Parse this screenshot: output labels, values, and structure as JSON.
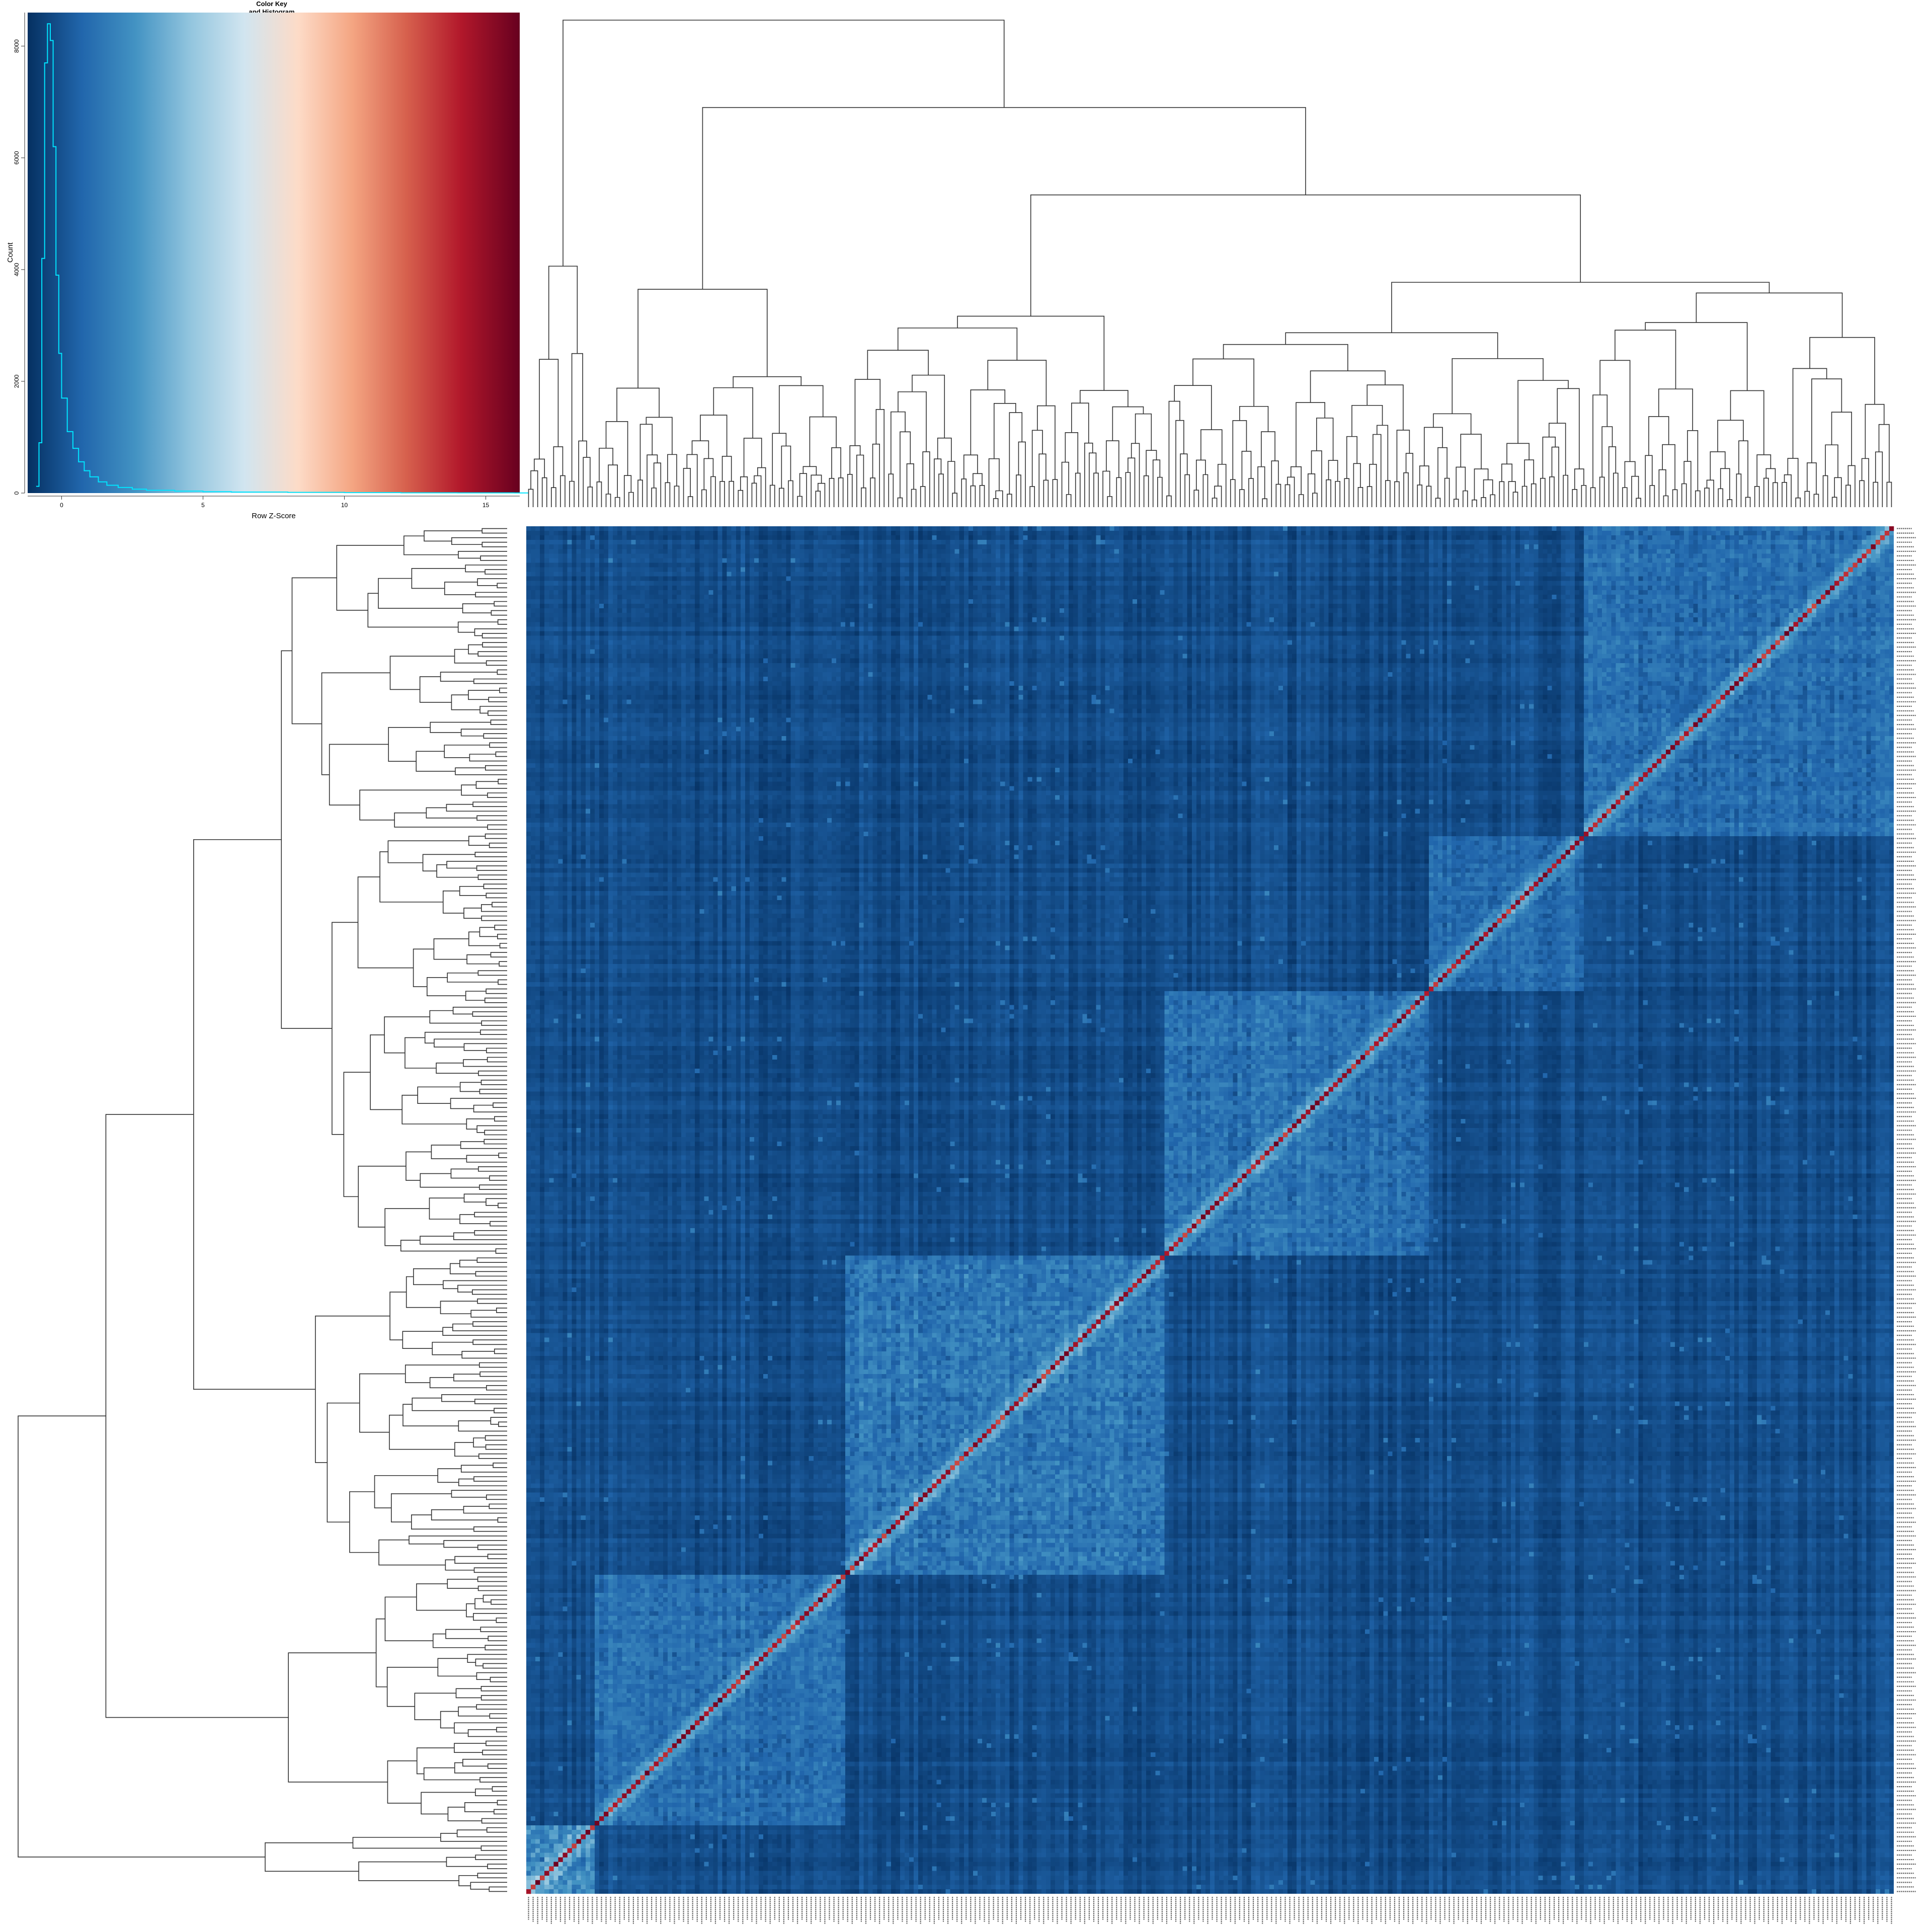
{
  "colors": {
    "palette": [
      "#053061",
      "#2166ac",
      "#4393c3",
      "#92c5de",
      "#d1e5f0",
      "#fddbc7",
      "#f4a582",
      "#d6604d",
      "#b2182b",
      "#67001f"
    ],
    "histogram_line": "#00e5ff",
    "dendrogram_line": "#333333"
  },
  "chart_data": [
    {
      "type": "histogram",
      "title": "Color Key\nand Histogram",
      "xlabel": "Row Z-Score",
      "ylabel": "Count",
      "xlim": [
        -1.2,
        16.2
      ],
      "ylim": [
        0,
        8600
      ],
      "x_ticks": [
        0,
        5,
        10,
        15
      ],
      "y_ticks": [
        0,
        2000,
        4000,
        6000,
        8000
      ],
      "bins": {
        "x": [
          -0.9,
          -0.8,
          -0.7,
          -0.6,
          -0.5,
          -0.4,
          -0.3,
          -0.2,
          -0.1,
          0.0,
          0.2,
          0.4,
          0.6,
          0.8,
          1.0,
          1.3,
          1.6,
          2.0,
          2.5,
          3.0,
          4.0,
          5.0,
          6.0,
          8.0,
          10.0,
          12.0,
          14.0,
          16.0
        ],
        "counts": [
          120,
          900,
          4200,
          7700,
          8400,
          8100,
          6200,
          3900,
          2500,
          1700,
          1100,
          800,
          560,
          400,
          290,
          200,
          140,
          100,
          70,
          50,
          35,
          25,
          18,
          12,
          8,
          5,
          3,
          2
        ]
      }
    },
    {
      "type": "heatmap",
      "title": "",
      "xlabel": "",
      "ylabel": "",
      "n_rows": 300,
      "n_cols": 300,
      "value_range": [
        -1,
        16
      ],
      "diagonal_value": 16,
      "block_structure": [
        {
          "start": 0,
          "end": 15,
          "level": 2.2
        },
        {
          "start": 15,
          "end": 70,
          "level": 1.3
        },
        {
          "start": 70,
          "end": 140,
          "level": 1.6
        },
        {
          "start": 140,
          "end": 198,
          "level": 1.4
        },
        {
          "start": 198,
          "end": 232,
          "level": 1.1
        },
        {
          "start": 232,
          "end": 300,
          "level": 1.2
        }
      ],
      "row_labels_visible": "unreadable",
      "col_labels_visible": "unreadable"
    }
  ]
}
